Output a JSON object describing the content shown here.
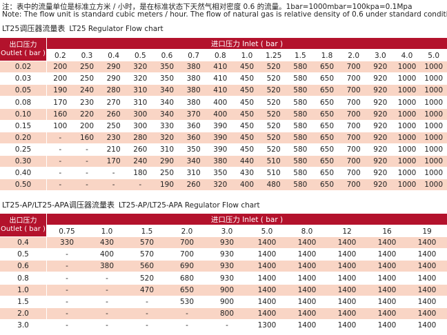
{
  "note_cn": "注：表中的流量单位是标准立方米 / 小时，是在标准状态下天然气相对密度 0.6 的流量。1bar=1000mbar=100kpa=0.1Mpa",
  "note_en": "Note: The flow unit is standard cubic meters / hour. The flow of natural gas is relative density of 0.6 under standard conditions.",
  "tables": [
    {
      "title_model": "LT25调压器流量表",
      "title_en": "LT25 Regulator Flow chart",
      "outlet_header": "出口压力",
      "outlet_header_en": "Outlet ( bar )",
      "inlet_header": "进口压力  Inlet ( bar )",
      "inlet_values": [
        "0.2",
        "0.3",
        "0.4",
        "0.5",
        "0.6",
        "0.7",
        "0.8",
        "1.0",
        "1.25",
        "1.5",
        "1.8",
        "2.0",
        "3.0",
        "4.0",
        "5.0"
      ],
      "rows": [
        {
          "outlet": "0.02",
          "values": [
            "200",
            "250",
            "290",
            "320",
            "350",
            "380",
            "410",
            "450",
            "520",
            "580",
            "650",
            "700",
            "920",
            "1000",
            "1000"
          ]
        },
        {
          "outlet": "0.03",
          "values": [
            "200",
            "250",
            "290",
            "320",
            "350",
            "380",
            "410",
            "450",
            "520",
            "580",
            "650",
            "700",
            "920",
            "1000",
            "1000"
          ]
        },
        {
          "outlet": "0.05",
          "values": [
            "190",
            "240",
            "280",
            "310",
            "340",
            "380",
            "410",
            "450",
            "520",
            "580",
            "650",
            "700",
            "920",
            "1000",
            "1000"
          ]
        },
        {
          "outlet": "0.08",
          "values": [
            "170",
            "230",
            "270",
            "310",
            "340",
            "380",
            "400",
            "450",
            "520",
            "580",
            "650",
            "700",
            "920",
            "1000",
            "1000"
          ]
        },
        {
          "outlet": "0.10",
          "values": [
            "160",
            "220",
            "260",
            "300",
            "340",
            "370",
            "400",
            "450",
            "520",
            "580",
            "650",
            "700",
            "920",
            "1000",
            "1000"
          ]
        },
        {
          "outlet": "0.15",
          "values": [
            "100",
            "200",
            "250",
            "300",
            "330",
            "360",
            "390",
            "450",
            "520",
            "580",
            "650",
            "700",
            "920",
            "1000",
            "1000"
          ]
        },
        {
          "outlet": "0.20",
          "values": [
            "-",
            "160",
            "230",
            "280",
            "320",
            "360",
            "390",
            "450",
            "520",
            "580",
            "650",
            "700",
            "920",
            "1000",
            "1000"
          ]
        },
        {
          "outlet": "0.25",
          "values": [
            "-",
            "-",
            "210",
            "260",
            "310",
            "350",
            "390",
            "450",
            "520",
            "580",
            "650",
            "700",
            "920",
            "1000",
            "1000"
          ]
        },
        {
          "outlet": "0.30",
          "values": [
            "-",
            "-",
            "170",
            "240",
            "290",
            "340",
            "380",
            "440",
            "510",
            "580",
            "650",
            "700",
            "920",
            "1000",
            "1000"
          ]
        },
        {
          "outlet": "0.40",
          "values": [
            "-",
            "-",
            "-",
            "180",
            "250",
            "310",
            "350",
            "430",
            "510",
            "580",
            "650",
            "700",
            "920",
            "1000",
            "1000"
          ]
        },
        {
          "outlet": "0.50",
          "values": [
            "-",
            "-",
            "-",
            "-",
            "190",
            "260",
            "320",
            "400",
            "480",
            "580",
            "650",
            "700",
            "920",
            "1000",
            "1000"
          ]
        }
      ]
    },
    {
      "title_model": "LT25-AP/LT25-APA调压器流量表",
      "title_en": "LT25-AP/LT25-APA Regulator Flow chart",
      "outlet_header": "出口压力",
      "outlet_header_en": "Outlet ( bar )",
      "inlet_header": "进口压力  Inlet ( bar )",
      "inlet_values": [
        "0.75",
        "1.0",
        "1.5",
        "2.0",
        "3.0",
        "5.0",
        "8.0",
        "12",
        "16",
        "19"
      ],
      "rows": [
        {
          "outlet": "0.4",
          "values": [
            "330",
            "430",
            "570",
            "700",
            "930",
            "1400",
            "1400",
            "1400",
            "1400",
            "1400"
          ]
        },
        {
          "outlet": "0.5",
          "values": [
            "-",
            "400",
            "570",
            "700",
            "930",
            "1400",
            "1400",
            "1400",
            "1400",
            "1400"
          ]
        },
        {
          "outlet": "0.6",
          "values": [
            "-",
            "380",
            "560",
            "690",
            "930",
            "1400",
            "1400",
            "1400",
            "1400",
            "1400"
          ]
        },
        {
          "outlet": "0.8",
          "values": [
            "-",
            "-",
            "520",
            "680",
            "930",
            "1400",
            "1400",
            "1400",
            "1400",
            "1400"
          ]
        },
        {
          "outlet": "1.0",
          "values": [
            "-",
            "-",
            "470",
            "650",
            "900",
            "1400",
            "1400",
            "1400",
            "1400",
            "1400"
          ]
        },
        {
          "outlet": "1.5",
          "values": [
            "-",
            "-",
            "-",
            "530",
            "900",
            "1400",
            "1400",
            "1400",
            "1400",
            "1400"
          ]
        },
        {
          "outlet": "2.0",
          "values": [
            "-",
            "-",
            "-",
            "-",
            "800",
            "1400",
            "1400",
            "1400",
            "1400",
            "1400"
          ]
        },
        {
          "outlet": "3.0",
          "values": [
            "-",
            "-",
            "-",
            "-",
            "-",
            "1300",
            "1400",
            "1400",
            "1400",
            "1400"
          ]
        }
      ]
    }
  ]
}
